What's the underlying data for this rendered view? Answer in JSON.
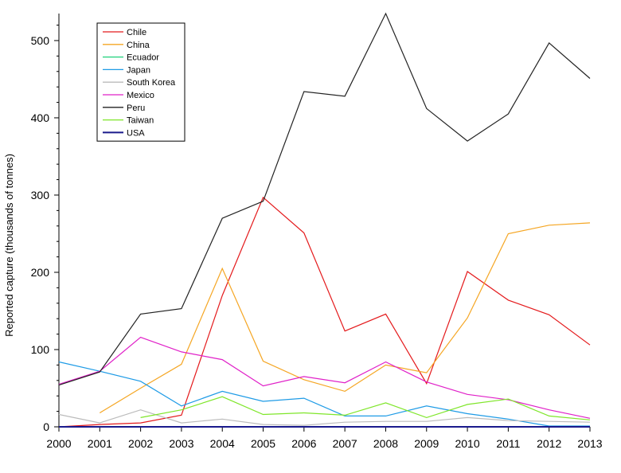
{
  "chart_data": {
    "type": "line",
    "title": "",
    "xlabel": "",
    "ylabel": "Reported capture (thousands of tonnes)",
    "x": [
      2000,
      2001,
      2002,
      2003,
      2004,
      2005,
      2006,
      2007,
      2008,
      2009,
      2010,
      2011,
      2012,
      2013
    ],
    "xlim": [
      2000,
      2013
    ],
    "ylim": [
      0,
      535
    ],
    "yticks": [
      0,
      100,
      200,
      300,
      400,
      500
    ],
    "grid": false,
    "legend_position": "top-left",
    "series": [
      {
        "name": "Chile",
        "color": "#e41a1c",
        "values": [
          0,
          3,
          5,
          15,
          170,
          297,
          251,
          124,
          146,
          56,
          201,
          164,
          145,
          106
        ]
      },
      {
        "name": "China",
        "color": "#f5a623",
        "values": [
          null,
          18,
          50,
          81,
          205,
          85,
          61,
          46,
          80,
          70,
          141,
          250,
          261,
          264
        ]
      },
      {
        "name": "Ecuador",
        "color": "#1fd17a",
        "values": [
          null,
          null,
          null,
          null,
          null,
          null,
          null,
          null,
          null,
          null,
          null,
          null,
          null,
          null
        ]
      },
      {
        "name": "Japan",
        "color": "#1e9be6",
        "values": [
          84,
          72,
          59,
          27,
          46,
          33,
          37,
          14,
          14,
          27,
          17,
          10,
          1,
          1
        ]
      },
      {
        "name": "South Korea",
        "color": "#bbbbbb",
        "values": [
          16,
          5,
          22,
          5,
          10,
          3,
          2,
          6,
          7,
          7,
          12,
          8,
          7,
          6
        ]
      },
      {
        "name": "Mexico",
        "color": "#e020c8",
        "values": [
          55,
          72,
          116,
          97,
          87,
          53,
          65,
          57,
          84,
          58,
          42,
          35,
          22,
          11
        ]
      },
      {
        "name": "Peru",
        "color": "#222222",
        "values": [
          54,
          71,
          146,
          153,
          270,
          292,
          434,
          428,
          535,
          412,
          370,
          405,
          497,
          451
        ]
      },
      {
        "name": "Taiwan",
        "color": "#7fe62a",
        "values": [
          null,
          null,
          12,
          22,
          39,
          16,
          18,
          15,
          31,
          12,
          29,
          36,
          14,
          9
        ]
      },
      {
        "name": "USA",
        "color": "#1a1a8c",
        "values": [
          0,
          0,
          0,
          0,
          0,
          0,
          0,
          0,
          0,
          0,
          0,
          0,
          0,
          0
        ]
      }
    ]
  }
}
